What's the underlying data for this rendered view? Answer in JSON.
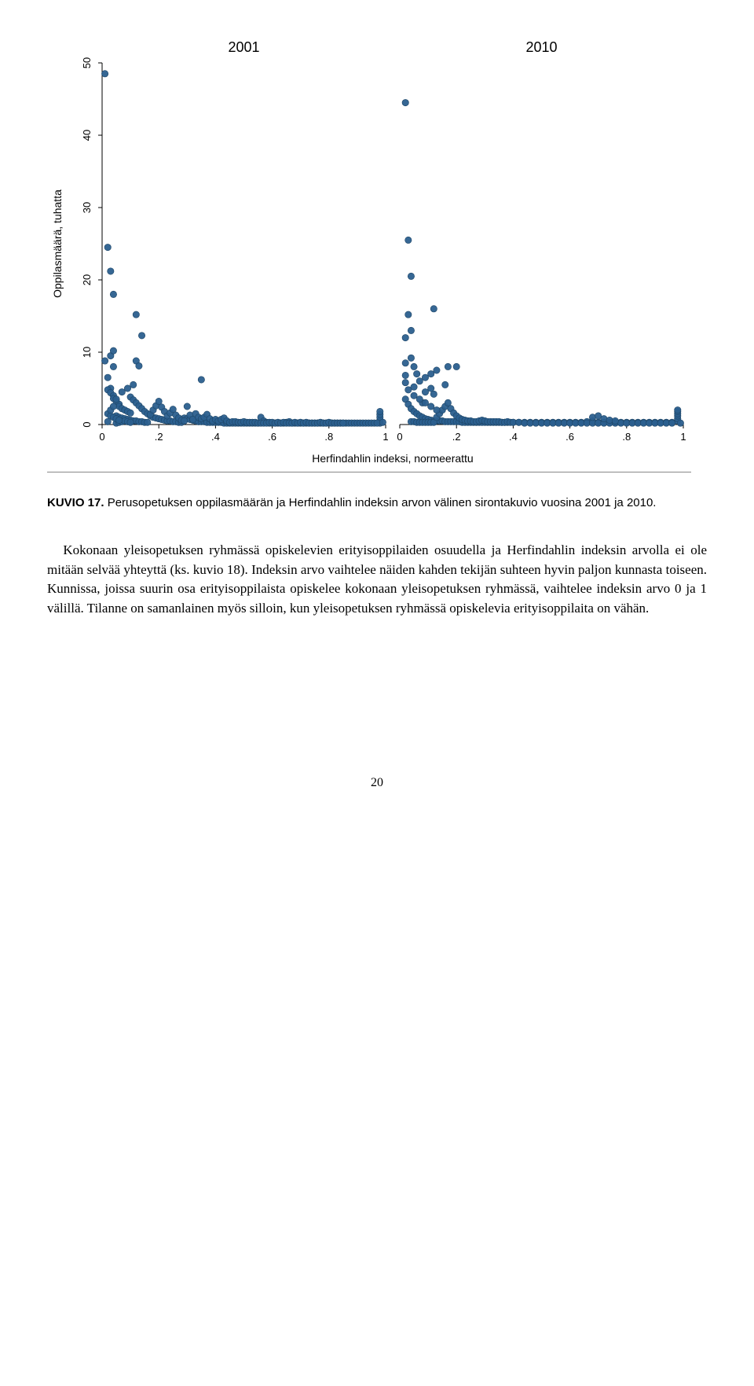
{
  "chart": {
    "type": "scatter",
    "panels": [
      "2001",
      "2010"
    ],
    "panel_title_fontsize": 18,
    "ylabel": "Oppilasmäärä, tuhatta",
    "xlabel": "Herfindahlin indeksi, normeerattu",
    "label_fontsize": 14,
    "tick_fontsize": 13,
    "ylim": [
      0,
      50
    ],
    "yticks": [
      0,
      10,
      20,
      30,
      40,
      50
    ],
    "xlim": [
      0,
      1
    ],
    "xticks": [
      0,
      0.2,
      0.4,
      0.6,
      0.8,
      1
    ],
    "xtick_labels": [
      "0",
      ".2",
      ".4",
      ".6",
      ".8",
      "1"
    ],
    "marker_color": "#2b5f8e",
    "marker_stroke": "#1d4566",
    "marker_radius": 4.2,
    "axis_color": "#000000",
    "background_color": "#ffffff",
    "data2001": [
      [
        0.01,
        48.5
      ],
      [
        0.02,
        24.5
      ],
      [
        0.03,
        21.2
      ],
      [
        0.04,
        18.0
      ],
      [
        0.12,
        15.2
      ],
      [
        0.14,
        12.3
      ],
      [
        0.03,
        9.5
      ],
      [
        0.04,
        8.0
      ],
      [
        0.01,
        8.8
      ],
      [
        0.04,
        10.2
      ],
      [
        0.12,
        8.8
      ],
      [
        0.13,
        8.1
      ],
      [
        0.02,
        6.5
      ],
      [
        0.35,
        6.2
      ],
      [
        0.03,
        5.0
      ],
      [
        0.02,
        4.8
      ],
      [
        0.03,
        4.4
      ],
      [
        0.04,
        4.0
      ],
      [
        0.04,
        3.6
      ],
      [
        0.05,
        3.2
      ],
      [
        0.06,
        2.8
      ],
      [
        0.06,
        2.5
      ],
      [
        0.07,
        2.2
      ],
      [
        0.08,
        2.0
      ],
      [
        0.09,
        1.8
      ],
      [
        0.1,
        1.6
      ],
      [
        0.1,
        3.8
      ],
      [
        0.11,
        3.4
      ],
      [
        0.12,
        3.0
      ],
      [
        0.13,
        2.6
      ],
      [
        0.14,
        2.2
      ],
      [
        0.15,
        1.8
      ],
      [
        0.16,
        1.5
      ],
      [
        0.05,
        1.2
      ],
      [
        0.06,
        1.0
      ],
      [
        0.07,
        0.9
      ],
      [
        0.08,
        0.8
      ],
      [
        0.09,
        0.7
      ],
      [
        0.1,
        0.6
      ],
      [
        0.17,
        1.2
      ],
      [
        0.18,
        1.0
      ],
      [
        0.19,
        0.9
      ],
      [
        0.2,
        0.8
      ],
      [
        0.21,
        0.7
      ],
      [
        0.22,
        0.6
      ],
      [
        0.11,
        0.5
      ],
      [
        0.12,
        0.5
      ],
      [
        0.13,
        0.4
      ],
      [
        0.14,
        0.4
      ],
      [
        0.15,
        0.3
      ],
      [
        0.16,
        0.3
      ],
      [
        0.23,
        0.5
      ],
      [
        0.24,
        0.5
      ],
      [
        0.25,
        0.4
      ],
      [
        0.26,
        0.4
      ],
      [
        0.27,
        0.3
      ],
      [
        0.28,
        0.3
      ],
      [
        0.17,
        1.4
      ],
      [
        0.18,
        2.0
      ],
      [
        0.19,
        2.6
      ],
      [
        0.2,
        3.2
      ],
      [
        0.21,
        2.4
      ],
      [
        0.22,
        1.8
      ],
      [
        0.29,
        0.9
      ],
      [
        0.3,
        0.8
      ],
      [
        0.31,
        0.7
      ],
      [
        0.32,
        0.6
      ],
      [
        0.33,
        0.5
      ],
      [
        0.34,
        0.4
      ],
      [
        0.23,
        1.2
      ],
      [
        0.24,
        1.6
      ],
      [
        0.25,
        2.1
      ],
      [
        0.26,
        1.3
      ],
      [
        0.27,
        0.9
      ],
      [
        0.28,
        0.6
      ],
      [
        0.35,
        0.4
      ],
      [
        0.36,
        0.4
      ],
      [
        0.37,
        0.3
      ],
      [
        0.38,
        0.3
      ],
      [
        0.39,
        0.3
      ],
      [
        0.4,
        0.3
      ],
      [
        0.29,
        0.5
      ],
      [
        0.3,
        2.5
      ],
      [
        0.31,
        1.3
      ],
      [
        0.32,
        0.7
      ],
      [
        0.33,
        1.5
      ],
      [
        0.34,
        1.0
      ],
      [
        0.41,
        0.3
      ],
      [
        0.42,
        0.3
      ],
      [
        0.43,
        0.2
      ],
      [
        0.44,
        0.2
      ],
      [
        0.45,
        0.2
      ],
      [
        0.46,
        0.2
      ],
      [
        0.35,
        0.8
      ],
      [
        0.36,
        1.0
      ],
      [
        0.37,
        1.4
      ],
      [
        0.38,
        0.8
      ],
      [
        0.39,
        0.5
      ],
      [
        0.4,
        0.7
      ],
      [
        0.47,
        0.2
      ],
      [
        0.48,
        0.2
      ],
      [
        0.49,
        0.2
      ],
      [
        0.5,
        0.2
      ],
      [
        0.51,
        0.2
      ],
      [
        0.52,
        0.2
      ],
      [
        0.41,
        0.5
      ],
      [
        0.42,
        0.7
      ],
      [
        0.43,
        0.9
      ],
      [
        0.44,
        0.5
      ],
      [
        0.45,
        0.3
      ],
      [
        0.46,
        0.4
      ],
      [
        0.53,
        0.2
      ],
      [
        0.54,
        0.2
      ],
      [
        0.55,
        0.2
      ],
      [
        0.56,
        1.0
      ],
      [
        0.57,
        0.5
      ],
      [
        0.58,
        0.3
      ],
      [
        0.47,
        0.4
      ],
      [
        0.48,
        0.3
      ],
      [
        0.49,
        0.3
      ],
      [
        0.5,
        0.4
      ],
      [
        0.51,
        0.3
      ],
      [
        0.52,
        0.3
      ],
      [
        0.59,
        0.2
      ],
      [
        0.6,
        0.2
      ],
      [
        0.61,
        0.2
      ],
      [
        0.62,
        0.2
      ],
      [
        0.63,
        0.2
      ],
      [
        0.64,
        0.2
      ],
      [
        0.53,
        0.3
      ],
      [
        0.54,
        0.3
      ],
      [
        0.55,
        0.2
      ],
      [
        0.56,
        0.2
      ],
      [
        0.57,
        0.2
      ],
      [
        0.58,
        0.2
      ],
      [
        0.65,
        0.3
      ],
      [
        0.66,
        0.4
      ],
      [
        0.67,
        0.2
      ],
      [
        0.68,
        0.2
      ],
      [
        0.69,
        0.2
      ],
      [
        0.7,
        0.2
      ],
      [
        0.59,
        0.3
      ],
      [
        0.6,
        0.3
      ],
      [
        0.61,
        0.2
      ],
      [
        0.62,
        0.3
      ],
      [
        0.63,
        0.2
      ],
      [
        0.64,
        0.3
      ],
      [
        0.71,
        0.2
      ],
      [
        0.72,
        0.2
      ],
      [
        0.73,
        0.2
      ],
      [
        0.74,
        0.2
      ],
      [
        0.75,
        0.2
      ],
      [
        0.76,
        0.2
      ],
      [
        0.65,
        0.2
      ],
      [
        0.66,
        0.2
      ],
      [
        0.67,
        0.2
      ],
      [
        0.68,
        0.3
      ],
      [
        0.69,
        0.2
      ],
      [
        0.7,
        0.3
      ],
      [
        0.77,
        0.2
      ],
      [
        0.78,
        0.2
      ],
      [
        0.79,
        0.2
      ],
      [
        0.8,
        0.2
      ],
      [
        0.81,
        0.2
      ],
      [
        0.82,
        0.2
      ],
      [
        0.71,
        0.2
      ],
      [
        0.72,
        0.3
      ],
      [
        0.73,
        0.2
      ],
      [
        0.74,
        0.2
      ],
      [
        0.75,
        0.2
      ],
      [
        0.76,
        0.2
      ],
      [
        0.83,
        0.2
      ],
      [
        0.84,
        0.2
      ],
      [
        0.85,
        0.2
      ],
      [
        0.86,
        0.2
      ],
      [
        0.87,
        0.2
      ],
      [
        0.88,
        0.2
      ],
      [
        0.77,
        0.3
      ],
      [
        0.78,
        0.2
      ],
      [
        0.79,
        0.2
      ],
      [
        0.8,
        0.3
      ],
      [
        0.81,
        0.2
      ],
      [
        0.82,
        0.2
      ],
      [
        0.89,
        0.2
      ],
      [
        0.9,
        0.2
      ],
      [
        0.91,
        0.2
      ],
      [
        0.92,
        0.2
      ],
      [
        0.93,
        0.2
      ],
      [
        0.94,
        0.2
      ],
      [
        0.83,
        0.2
      ],
      [
        0.84,
        0.2
      ],
      [
        0.85,
        0.2
      ],
      [
        0.98,
        0.2
      ],
      [
        0.98,
        0.6
      ],
      [
        0.98,
        1.0
      ],
      [
        0.95,
        0.2
      ],
      [
        0.96,
        0.2
      ],
      [
        0.97,
        0.2
      ],
      [
        0.98,
        1.4
      ],
      [
        0.98,
        1.8
      ],
      [
        0.99,
        0.3
      ],
      [
        0.05,
        0.2
      ],
      [
        0.06,
        0.3
      ],
      [
        0.07,
        0.4
      ],
      [
        0.08,
        0.5
      ],
      [
        0.09,
        0.4
      ],
      [
        0.1,
        0.3
      ],
      [
        0.02,
        1.5
      ],
      [
        0.03,
        1.2
      ],
      [
        0.04,
        1.0
      ],
      [
        0.05,
        0.8
      ],
      [
        0.06,
        0.6
      ],
      [
        0.02,
        0.4
      ],
      [
        0.03,
        2.0
      ],
      [
        0.04,
        2.5
      ],
      [
        0.05,
        3.5
      ],
      [
        0.07,
        4.5
      ],
      [
        0.09,
        5.0
      ],
      [
        0.11,
        5.5
      ]
    ],
    "data2010": [
      [
        0.02,
        44.5
      ],
      [
        0.03,
        25.5
      ],
      [
        0.04,
        20.5
      ],
      [
        0.03,
        15.2
      ],
      [
        0.02,
        12.0
      ],
      [
        0.12,
        16.0
      ],
      [
        0.04,
        13.0
      ],
      [
        0.02,
        8.5
      ],
      [
        0.04,
        9.2
      ],
      [
        0.05,
        8.0
      ],
      [
        0.06,
        7.0
      ],
      [
        0.02,
        6.8
      ],
      [
        0.02,
        5.8
      ],
      [
        0.03,
        4.8
      ],
      [
        0.05,
        5.2
      ],
      [
        0.07,
        6.0
      ],
      [
        0.09,
        6.5
      ],
      [
        0.11,
        7.0
      ],
      [
        0.02,
        3.5
      ],
      [
        0.03,
        2.8
      ],
      [
        0.04,
        2.2
      ],
      [
        0.05,
        1.8
      ],
      [
        0.06,
        1.5
      ],
      [
        0.07,
        1.2
      ],
      [
        0.13,
        7.5
      ],
      [
        0.17,
        8.0
      ],
      [
        0.2,
        8.0
      ],
      [
        0.16,
        5.5
      ],
      [
        0.12,
        4.2
      ],
      [
        0.08,
        3.0
      ],
      [
        0.08,
        1.0
      ],
      [
        0.09,
        0.8
      ],
      [
        0.1,
        0.7
      ],
      [
        0.11,
        0.6
      ],
      [
        0.12,
        0.5
      ],
      [
        0.13,
        0.5
      ],
      [
        0.04,
        0.4
      ],
      [
        0.05,
        0.4
      ],
      [
        0.06,
        0.3
      ],
      [
        0.07,
        0.3
      ],
      [
        0.08,
        0.3
      ],
      [
        0.09,
        0.3
      ],
      [
        0.14,
        0.5
      ],
      [
        0.15,
        0.5
      ],
      [
        0.16,
        0.4
      ],
      [
        0.17,
        0.4
      ],
      [
        0.18,
        0.4
      ],
      [
        0.19,
        0.4
      ],
      [
        0.1,
        0.3
      ],
      [
        0.11,
        0.3
      ],
      [
        0.12,
        0.3
      ],
      [
        0.13,
        1.0
      ],
      [
        0.14,
        1.5
      ],
      [
        0.15,
        2.0
      ],
      [
        0.2,
        0.4
      ],
      [
        0.21,
        0.4
      ],
      [
        0.22,
        0.3
      ],
      [
        0.23,
        0.3
      ],
      [
        0.24,
        0.3
      ],
      [
        0.25,
        0.3
      ],
      [
        0.16,
        2.5
      ],
      [
        0.17,
        3.0
      ],
      [
        0.18,
        2.2
      ],
      [
        0.19,
        1.6
      ],
      [
        0.2,
        1.2
      ],
      [
        0.21,
        0.9
      ],
      [
        0.26,
        0.3
      ],
      [
        0.27,
        0.3
      ],
      [
        0.28,
        0.3
      ],
      [
        0.29,
        0.3
      ],
      [
        0.3,
        0.3
      ],
      [
        0.31,
        0.3
      ],
      [
        0.22,
        0.7
      ],
      [
        0.23,
        0.6
      ],
      [
        0.24,
        0.5
      ],
      [
        0.25,
        0.5
      ],
      [
        0.26,
        0.4
      ],
      [
        0.27,
        0.4
      ],
      [
        0.32,
        0.3
      ],
      [
        0.33,
        0.3
      ],
      [
        0.34,
        0.3
      ],
      [
        0.35,
        0.3
      ],
      [
        0.36,
        0.3
      ],
      [
        0.37,
        0.3
      ],
      [
        0.28,
        0.5
      ],
      [
        0.29,
        0.6
      ],
      [
        0.3,
        0.5
      ],
      [
        0.31,
        0.4
      ],
      [
        0.32,
        0.4
      ],
      [
        0.33,
        0.4
      ],
      [
        0.38,
        0.3
      ],
      [
        0.4,
        0.3
      ],
      [
        0.42,
        0.3
      ],
      [
        0.44,
        0.3
      ],
      [
        0.46,
        0.3
      ],
      [
        0.48,
        0.3
      ],
      [
        0.34,
        0.4
      ],
      [
        0.35,
        0.4
      ],
      [
        0.36,
        0.3
      ],
      [
        0.37,
        0.3
      ],
      [
        0.38,
        0.4
      ],
      [
        0.39,
        0.3
      ],
      [
        0.5,
        0.3
      ],
      [
        0.52,
        0.3
      ],
      [
        0.54,
        0.3
      ],
      [
        0.56,
        0.3
      ],
      [
        0.58,
        0.3
      ],
      [
        0.6,
        0.3
      ],
      [
        0.4,
        0.3
      ],
      [
        0.42,
        0.3
      ],
      [
        0.44,
        0.2
      ],
      [
        0.46,
        0.2
      ],
      [
        0.48,
        0.2
      ],
      [
        0.5,
        0.2
      ],
      [
        0.62,
        0.3
      ],
      [
        0.64,
        0.3
      ],
      [
        0.66,
        0.4
      ],
      [
        0.68,
        0.5
      ],
      [
        0.7,
        0.3
      ],
      [
        0.72,
        0.3
      ],
      [
        0.52,
        0.2
      ],
      [
        0.54,
        0.2
      ],
      [
        0.56,
        0.2
      ],
      [
        0.58,
        0.2
      ],
      [
        0.6,
        0.2
      ],
      [
        0.62,
        0.2
      ],
      [
        0.74,
        0.3
      ],
      [
        0.76,
        0.3
      ],
      [
        0.78,
        0.3
      ],
      [
        0.8,
        0.3
      ],
      [
        0.82,
        0.3
      ],
      [
        0.84,
        0.3
      ],
      [
        0.64,
        0.2
      ],
      [
        0.66,
        0.2
      ],
      [
        0.68,
        0.2
      ],
      [
        0.7,
        0.2
      ],
      [
        0.72,
        0.2
      ],
      [
        0.74,
        0.2
      ],
      [
        0.86,
        0.3
      ],
      [
        0.88,
        0.3
      ],
      [
        0.9,
        0.3
      ],
      [
        0.92,
        0.3
      ],
      [
        0.94,
        0.3
      ],
      [
        0.96,
        0.3
      ],
      [
        0.76,
        0.2
      ],
      [
        0.78,
        0.2
      ],
      [
        0.8,
        0.2
      ],
      [
        0.82,
        0.2
      ],
      [
        0.84,
        0.2
      ],
      [
        0.86,
        0.2
      ],
      [
        0.98,
        0.5
      ],
      [
        0.98,
        0.8
      ],
      [
        0.98,
        1.2
      ],
      [
        0.98,
        1.5
      ],
      [
        0.98,
        1.8
      ],
      [
        0.98,
        2.0
      ],
      [
        0.88,
        0.2
      ],
      [
        0.9,
        0.2
      ],
      [
        0.92,
        0.2
      ],
      [
        0.94,
        0.2
      ],
      [
        0.96,
        0.2
      ],
      [
        0.99,
        0.2
      ],
      [
        0.68,
        1.0
      ],
      [
        0.7,
        1.2
      ],
      [
        0.72,
        0.8
      ],
      [
        0.74,
        0.6
      ],
      [
        0.76,
        0.5
      ],
      [
        0.05,
        4.0
      ],
      [
        0.07,
        3.5
      ],
      [
        0.09,
        3.0
      ],
      [
        0.11,
        2.5
      ],
      [
        0.13,
        2.0
      ],
      [
        0.09,
        4.5
      ],
      [
        0.11,
        5.0
      ]
    ]
  },
  "caption": {
    "label": "KUVIO 17.",
    "text": "Perusopetuksen oppilasmäärän ja Herfindahlin indeksin arvon välinen sirontakuvio vuosina 2001 ja 2010."
  },
  "paragraph": "Kokonaan yleisopetuksen ryhmässä opiskelevien erityisoppilaiden osuudella ja Herfindahlin indeksin arvolla ei ole mitään selvää yhteyttä (ks. kuvio 18). Indeksin arvo vaihtelee näiden kahden tekijän suhteen hyvin paljon kunnasta toiseen. Kunnissa, joissa suurin osa erityisoppilaista opiskelee kokonaan yleisopetuksen ryhmässä, vaihtelee indeksin arvo 0 ja 1 välillä. Tilanne on samanlainen myös silloin, kun yleisopetuksen ryhmässä opiskelevia erityisoppilaita on vähän.",
  "page": "20"
}
